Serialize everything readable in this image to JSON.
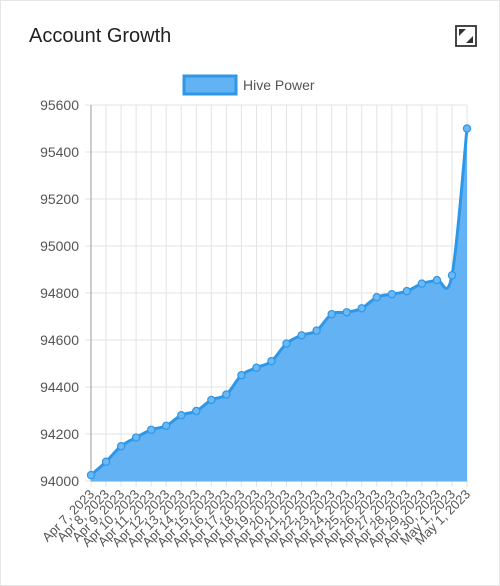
{
  "card": {
    "title": "Account Growth",
    "expand_icon": "expand-icon"
  },
  "colors": {
    "line": "#2f97e8",
    "fill": "#63b2f3",
    "point": "#6bb8f5",
    "grid": "#e3e3e3",
    "axis": "#9a9a9a"
  },
  "chart_data": {
    "type": "area",
    "title": "",
    "xlabel": "",
    "ylabel": "",
    "ylim": [
      94000,
      95600
    ],
    "yticks": [
      94000,
      94200,
      94400,
      94600,
      94800,
      95000,
      95200,
      95400,
      95600
    ],
    "grid": true,
    "legend": "top-center",
    "categories": [
      "Apr 7, 2023",
      "Apr 8, 2023",
      "Apr 9, 2023",
      "Apr 10, 2023",
      "Apr 11, 2023",
      "Apr 12, 2023",
      "Apr 13, 2023",
      "Apr 14, 2023",
      "Apr 15, 2023",
      "Apr 16, 2023",
      "Apr 17, 2023",
      "Apr 18, 2023",
      "Apr 19, 2023",
      "Apr 20, 2023",
      "Apr 21, 2023",
      "Apr 22, 2023",
      "Apr 23, 2023",
      "Apr 24, 2023",
      "Apr 25, 2023",
      "Apr 26, 2023",
      "Apr 27, 2023",
      "Apr 28, 2023",
      "Apr 29, 2023",
      "Apr 30, 2023",
      "May 1, 2023",
      "May 1, 2023"
    ],
    "series": [
      {
        "name": "Hive Power",
        "values": [
          94025,
          94082,
          94148,
          94185,
          94218,
          94235,
          94280,
          94298,
          94345,
          94368,
          94450,
          94482,
          94510,
          94585,
          94620,
          94640,
          94710,
          94718,
          94735,
          94782,
          94795,
          94808,
          94840,
          94855,
          94875,
          95500
        ]
      }
    ]
  }
}
